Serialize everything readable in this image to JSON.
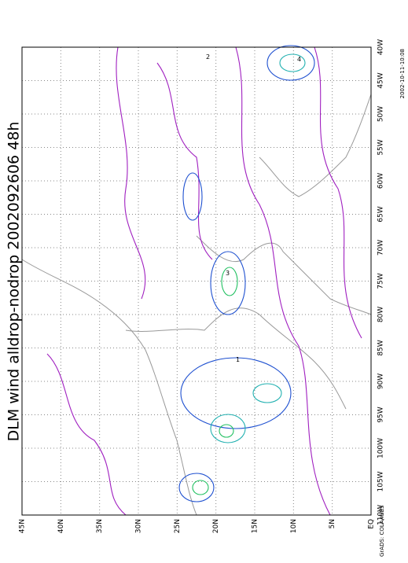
{
  "title": "DLM wind alldrop-nodrop 2002092606 48h",
  "lon_labels": [
    "40W",
    "45W",
    "50W",
    "55W",
    "60W",
    "65W",
    "70W",
    "75W",
    "80W",
    "85W",
    "90W",
    "95W",
    "100W",
    "105W",
    "110W"
  ],
  "lat_labels": [
    "45N",
    "40N",
    "35N",
    "30N",
    "25N",
    "20N",
    "15N",
    "10N",
    "5N",
    "EQ"
  ],
  "credit": "GrADS: COLA/IGES",
  "timestamp": "2002-10-11-10:08",
  "contour_labels": [
    "1",
    "2",
    "3",
    "4"
  ]
}
